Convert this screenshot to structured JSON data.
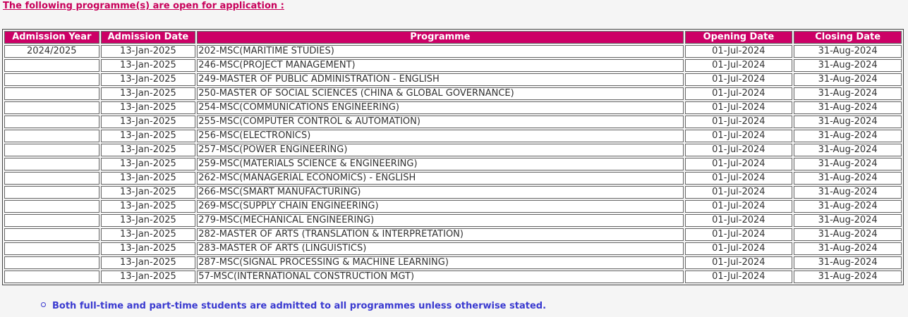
{
  "intro_text": "The following programme(s) are open for application :",
  "table": {
    "headers": {
      "admission_year": "Admission Year",
      "admission_date": "Admission Date",
      "programme": "Programme",
      "opening_date": "Opening Date",
      "closing_date": "Closing Date"
    },
    "rows": [
      {
        "admission_year": "2024/2025",
        "admission_date": "13-Jan-2025",
        "programme": "202-MSC(MARITIME STUDIES)",
        "opening_date": "01-Jul-2024",
        "closing_date": "31-Aug-2024"
      },
      {
        "admission_year": "",
        "admission_date": "13-Jan-2025",
        "programme": "246-MSC(PROJECT MANAGEMENT)",
        "opening_date": "01-Jul-2024",
        "closing_date": "31-Aug-2024"
      },
      {
        "admission_year": "",
        "admission_date": "13-Jan-2025",
        "programme": "249-MASTER OF PUBLIC ADMINISTRATION - ENGLISH",
        "opening_date": "01-Jul-2024",
        "closing_date": "31-Aug-2024"
      },
      {
        "admission_year": "",
        "admission_date": "13-Jan-2025",
        "programme": "250-MASTER OF SOCIAL SCIENCES (CHINA & GLOBAL GOVERNANCE)",
        "opening_date": "01-Jul-2024",
        "closing_date": "31-Aug-2024"
      },
      {
        "admission_year": "",
        "admission_date": "13-Jan-2025",
        "programme": "254-MSC(COMMUNICATIONS ENGINEERING)",
        "opening_date": "01-Jul-2024",
        "closing_date": "31-Aug-2024"
      },
      {
        "admission_year": "",
        "admission_date": "13-Jan-2025",
        "programme": "255-MSC(COMPUTER CONTROL & AUTOMATION)",
        "opening_date": "01-Jul-2024",
        "closing_date": "31-Aug-2024"
      },
      {
        "admission_year": "",
        "admission_date": "13-Jan-2025",
        "programme": "256-MSC(ELECTRONICS)",
        "opening_date": "01-Jul-2024",
        "closing_date": "31-Aug-2024"
      },
      {
        "admission_year": "",
        "admission_date": "13-Jan-2025",
        "programme": "257-MSC(POWER ENGINEERING)",
        "opening_date": "01-Jul-2024",
        "closing_date": "31-Aug-2024"
      },
      {
        "admission_year": "",
        "admission_date": "13-Jan-2025",
        "programme": "259-MSC(MATERIALS SCIENCE & ENGINEERING)",
        "opening_date": "01-Jul-2024",
        "closing_date": "31-Aug-2024"
      },
      {
        "admission_year": "",
        "admission_date": "13-Jan-2025",
        "programme": "262-MSC(MANAGERIAL ECONOMICS) - ENGLISH",
        "opening_date": "01-Jul-2024",
        "closing_date": "31-Aug-2024"
      },
      {
        "admission_year": "",
        "admission_date": "13-Jan-2025",
        "programme": "266-MSC(SMART MANUFACTURING)",
        "opening_date": "01-Jul-2024",
        "closing_date": "31-Aug-2024"
      },
      {
        "admission_year": "",
        "admission_date": "13-Jan-2025",
        "programme": "269-MSC(SUPPLY CHAIN ENGINEERING)",
        "opening_date": "01-Jul-2024",
        "closing_date": "31-Aug-2024"
      },
      {
        "admission_year": "",
        "admission_date": "13-Jan-2025",
        "programme": "279-MSC(MECHANICAL ENGINEERING)",
        "opening_date": "01-Jul-2024",
        "closing_date": "31-Aug-2024"
      },
      {
        "admission_year": "",
        "admission_date": "13-Jan-2025",
        "programme": "282-MASTER OF ARTS (TRANSLATION & INTERPRETATION)",
        "opening_date": "01-Jul-2024",
        "closing_date": "31-Aug-2024"
      },
      {
        "admission_year": "",
        "admission_date": "13-Jan-2025",
        "programme": "283-MASTER OF ARTS (LINGUISTICS)",
        "opening_date": "01-Jul-2024",
        "closing_date": "31-Aug-2024"
      },
      {
        "admission_year": "",
        "admission_date": "13-Jan-2025",
        "programme": "287-MSC(SIGNAL PROCESSING & MACHINE LEARNING)",
        "opening_date": "01-Jul-2024",
        "closing_date": "31-Aug-2024"
      },
      {
        "admission_year": "",
        "admission_date": "13-Jan-2025",
        "programme": "57-MSC(INTERNATIONAL CONSTRUCTION MGT)",
        "opening_date": "01-Jul-2024",
        "closing_date": "31-Aug-2024"
      }
    ]
  },
  "note_text": "Both full-time and part-time students are admitted to all programmes unless otherwise stated.",
  "colors": {
    "header_bg": "#cc0066",
    "intro_text": "#c8005a",
    "note_text": "#3a3ad0"
  }
}
